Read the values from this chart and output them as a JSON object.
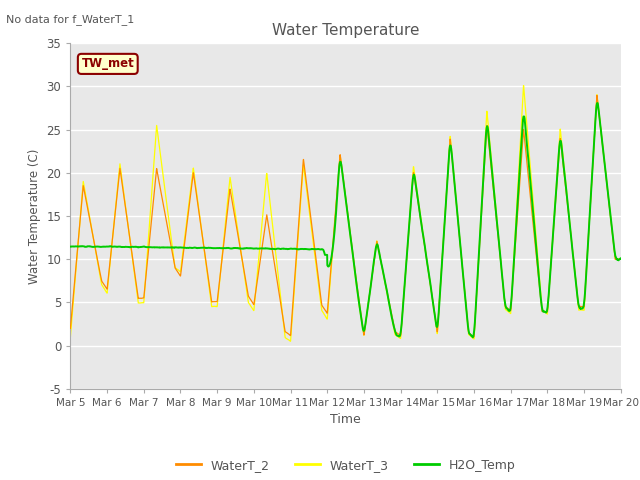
{
  "title": "Water Temperature",
  "ylabel": "Water Temperature (C)",
  "xlabel": "Time",
  "no_data_text": "No data for f_WaterT_1",
  "tw_met_label": "TW_met",
  "ylim": [
    -5,
    35
  ],
  "yticks": [
    -5,
    0,
    5,
    10,
    15,
    20,
    25,
    30,
    35
  ],
  "xtick_labels": [
    "Mar 5",
    "Mar 6",
    "Mar 7",
    "Mar 8",
    "Mar 9",
    "Mar 10",
    "Mar 11",
    "Mar 12",
    "Mar 13",
    "Mar 14",
    "Mar 15",
    "Mar 16",
    "Mar 17",
    "Mar 18",
    "Mar 19",
    "Mar 20"
  ],
  "color_WaterT2": "#FF8C00",
  "color_WaterT3": "#FFFF00",
  "color_H2O": "#00CC00",
  "bg_color": "#E8E8E8",
  "legend_entries": [
    "WaterT_2",
    "WaterT_3",
    "H2O_Temp"
  ],
  "tw_met_bg": "#FFFFCC",
  "tw_met_border": "#8B0000",
  "tw_met_text": "#8B0000"
}
